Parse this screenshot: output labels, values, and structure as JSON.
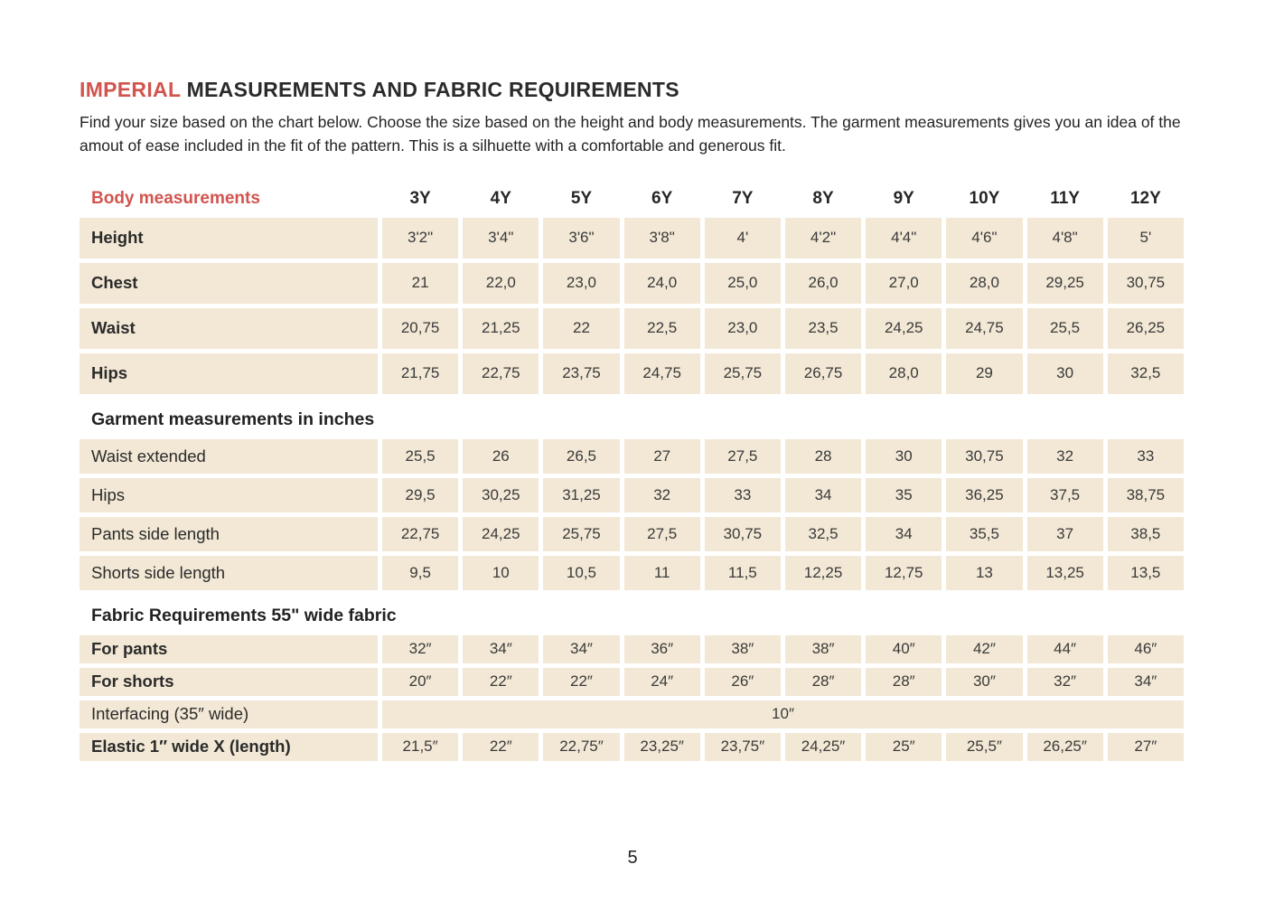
{
  "page": {
    "title_highlight": "IMPERIAL",
    "title_rest": " MEASUREMENTS AND FABRIC REQUIREMENTS",
    "intro": "Find your size based on the chart below. Choose the size based on the height and body measurements. The garment measurements gives you an idea of the amout of ease included in the fit of the pattern. This is a silhuette with a comfortable and generous fit.",
    "page_number": "5"
  },
  "colors": {
    "accent": "#d2544e",
    "cell_bg": "#f2e8d5",
    "text": "#2b2b2b"
  },
  "table": {
    "corner_label": "Body measurements",
    "sizes": [
      "3Y",
      "4Y",
      "5Y",
      "6Y",
      "7Y",
      "8Y",
      "9Y",
      "10Y",
      "11Y",
      "12Y"
    ],
    "sections": [
      {
        "id": "body",
        "rows": [
          {
            "label": "Height",
            "bold": true,
            "values": [
              "3'2\"",
              "3'4\"",
              "3'6\"",
              "3'8\"",
              "4'",
              "4'2\"",
              "4'4\"",
              "4'6\"",
              "4'8\"",
              "5'"
            ]
          },
          {
            "label": "Chest",
            "bold": true,
            "values": [
              "21",
              "22,0",
              "23,0",
              "24,0",
              "25,0",
              "26,0",
              "27,0",
              "28,0",
              "29,25",
              "30,75"
            ]
          },
          {
            "label": "Waist",
            "bold": true,
            "values": [
              "20,75",
              "21,25",
              "22",
              "22,5",
              "23,0",
              "23,5",
              "24,25",
              "24,75",
              "25,5",
              "26,25"
            ]
          },
          {
            "label": "Hips",
            "bold": true,
            "values": [
              "21,75",
              "22,75",
              "23,75",
              "24,75",
              "25,75",
              "26,75",
              "28,0",
              "29",
              "30",
              "32,5"
            ]
          }
        ]
      },
      {
        "id": "garment",
        "title": "Garment measurements in inches",
        "rows": [
          {
            "label": "Waist extended",
            "bold": false,
            "values": [
              "25,5",
              "26",
              "26,5",
              "27",
              "27,5",
              "28",
              "30",
              "30,75",
              "32",
              "33"
            ]
          },
          {
            "label": "Hips",
            "bold": false,
            "values": [
              "29,5",
              "30,25",
              "31,25",
              "32",
              "33",
              "34",
              "35",
              "36,25",
              "37,5",
              "38,75"
            ]
          },
          {
            "label": "Pants side length",
            "bold": false,
            "values": [
              "22,75",
              "24,25",
              "25,75",
              "27,5",
              "30,75",
              "32,5",
              "34",
              "35,5",
              "37",
              "38,5"
            ]
          },
          {
            "label": "Shorts side length",
            "bold": false,
            "values": [
              "9,5",
              "10",
              "10,5",
              "11",
              "11,5",
              "12,25",
              "12,75",
              "13",
              "13,25",
              "13,5"
            ]
          }
        ]
      },
      {
        "id": "fabric",
        "title": "Fabric Requirements 55\" wide fabric",
        "rows": [
          {
            "label": "For pants",
            "bold": true,
            "values": [
              "32″",
              "34″",
              "34″",
              "36″",
              "38″",
              "38″",
              "40″",
              "42″",
              "44″",
              "46″"
            ]
          },
          {
            "label": "For shorts",
            "bold": true,
            "values": [
              "20″",
              "22″",
              "22″",
              "24″",
              "26″",
              "28″",
              "28″",
              "30″",
              "32″",
              "34″"
            ]
          },
          {
            "label": "Interfacing (35″ wide)",
            "bold": false,
            "span_value": "10″"
          },
          {
            "label": "Elastic 1″ wide X (length)",
            "bold": true,
            "values": [
              "21,5″",
              "22″",
              "22,75″",
              "23,25″",
              "23,75″",
              "24,25″",
              "25″",
              "25,5″",
              "26,25″",
              "27″"
            ]
          }
        ]
      }
    ]
  }
}
